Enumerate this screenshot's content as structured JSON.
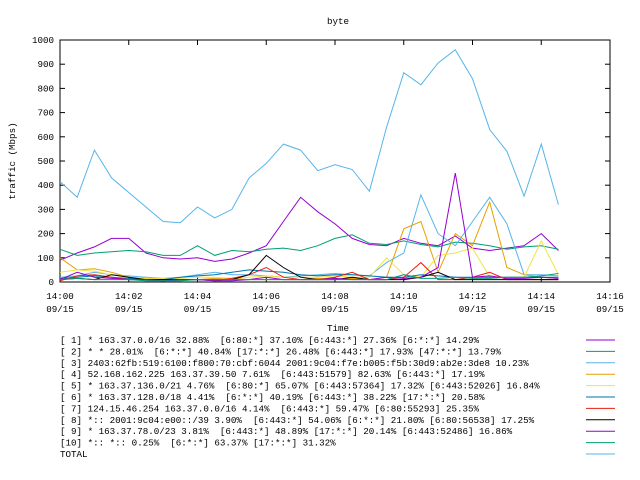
{
  "chart_data": {
    "type": "line",
    "title": "byte",
    "xlabel": "Time",
    "ylabel": "traffic (Mbps)",
    "x": [
      0,
      0.5,
      1,
      1.5,
      2,
      2.5,
      3,
      3.5,
      4,
      4.5,
      5,
      5.5,
      6,
      6.5,
      7,
      7.5,
      8,
      8.5,
      9,
      9.5,
      10,
      10.5,
      11,
      11.5,
      12,
      12.5,
      13,
      13.5,
      14,
      14.5
    ],
    "xlim": [
      0,
      16
    ],
    "xticks": [
      {
        "value": 0,
        "label": "14:00",
        "date": "09/15"
      },
      {
        "value": 2,
        "label": "14:02",
        "date": "09/15"
      },
      {
        "value": 4,
        "label": "14:04",
        "date": "09/15"
      },
      {
        "value": 6,
        "label": "14:06",
        "date": "09/15"
      },
      {
        "value": 8,
        "label": "14:08",
        "date": "09/15"
      },
      {
        "value": 10,
        "label": "14:10",
        "date": "09/15"
      },
      {
        "value": 12,
        "label": "14:12",
        "date": "09/15"
      },
      {
        "value": 14,
        "label": "14:14",
        "date": "09/15"
      },
      {
        "value": 16,
        "label": "14:16",
        "date": "09/15"
      }
    ],
    "ylim": [
      0,
      1000
    ],
    "yticks": [
      0,
      100,
      200,
      300,
      400,
      500,
      600,
      700,
      800,
      900,
      1000
    ],
    "series": [
      {
        "name": "[ 1] * 163.37.0.0/16 32.88%  [6:80:*] 37.10% [6:443:*] 27.36% [6:*:*] 14.29%",
        "color": "#9400d3",
        "values": [
          90,
          120,
          145,
          180,
          180,
          120,
          100,
          95,
          100,
          85,
          95,
          120,
          150,
          250,
          350,
          290,
          240,
          180,
          155,
          150,
          180,
          160,
          150,
          190,
          140,
          130,
          140,
          150,
          200,
          130
        ]
      },
      {
        "name": "[ 2] * * 28.01%  [6:*:*] 40.84% [17:*:*] 26.48% [6:443:*] 17.93% [47:*:*] 13.79%",
        "color": "#009e73",
        "values": [
          135,
          110,
          120,
          125,
          130,
          125,
          110,
          110,
          150,
          110,
          130,
          125,
          135,
          140,
          130,
          150,
          180,
          195,
          160,
          155,
          170,
          155,
          145,
          165,
          160,
          150,
          135,
          145,
          150,
          135
        ]
      },
      {
        "name": "[ 3] 2403:62fb:519:6100:f800:70:cbf:6044 2001:9c04:f7e:b005:f5b:30d9:ab2e:3de8 10.23%",
        "color": "#56b4e9",
        "values": [
          20,
          25,
          40,
          30,
          25,
          20,
          15,
          20,
          30,
          40,
          30,
          30,
          25,
          20,
          25,
          30,
          35,
          30,
          25,
          80,
          120,
          360,
          200,
          150,
          250,
          350,
          240,
          30,
          30,
          25
        ]
      },
      {
        "name": "[ 4] 52.168.162.225 163.37.39.50 7.61%  [6:443:51579] 82.63% [6:443:*] 17.19%",
        "color": "#e69f00",
        "values": [
          100,
          50,
          55,
          40,
          20,
          15,
          10,
          10,
          10,
          15,
          15,
          10,
          10,
          10,
          10,
          15,
          10,
          15,
          10,
          20,
          220,
          250,
          40,
          200,
          150,
          330,
          60,
          30,
          20,
          15
        ]
      },
      {
        "name": "[ 5] * 163.37.136.0/21 4.76%  [6:80:*] 65.07% [6:443:57364] 17.32% [6:443:52026] 16.84%",
        "color": "#f0e442",
        "values": [
          40,
          50,
          45,
          30,
          20,
          15,
          15,
          15,
          20,
          20,
          15,
          20,
          25,
          20,
          20,
          20,
          25,
          20,
          20,
          100,
          30,
          20,
          110,
          120,
          140,
          20,
          20,
          20,
          170,
          30
        ]
      },
      {
        "name": "[ 6] * 163.37.128.0/18 4.41%  [6:*:*] 40.19% [6:443:*] 38.22% [17:*:*] 20.58%",
        "color": "#0072b2",
        "values": [
          15,
          20,
          25,
          20,
          15,
          10,
          10,
          20,
          25,
          30,
          40,
          50,
          45,
          40,
          30,
          25,
          30,
          30,
          25,
          20,
          20,
          30,
          25,
          20,
          20,
          20,
          20,
          20,
          20,
          20
        ]
      },
      {
        "name": "[ 7] 124.15.46.254 163.37.0.0/16 4.14%  [6:443:*] 59.47% [6:80:55293] 25.35%",
        "color": "#e51e10",
        "values": [
          5,
          25,
          30,
          20,
          10,
          10,
          10,
          10,
          10,
          5,
          15,
          30,
          60,
          20,
          10,
          10,
          20,
          40,
          10,
          10,
          20,
          80,
          10,
          10,
          20,
          40,
          10,
          10,
          10,
          10
        ]
      },
      {
        "name": "[ 8] *:: 2001:9c04:e00::/39 3.90%  [6:443:*] 54.06% [6:*:*] 21.80% [6:80:56538] 17.25%",
        "color": "#000000",
        "values": [
          10,
          15,
          10,
          30,
          20,
          10,
          10,
          10,
          10,
          10,
          10,
          30,
          110,
          60,
          20,
          10,
          10,
          20,
          10,
          10,
          10,
          20,
          40,
          10,
          10,
          10,
          10,
          10,
          10,
          10
        ]
      },
      {
        "name": "[ 9] * 163.37.78.0/23 3.81%  [6:443:*] 48.89% [17:*:*] 20.14% [6:443:52486] 16.86%",
        "color": "#9400d3",
        "values": [
          10,
          40,
          20,
          15,
          10,
          10,
          5,
          10,
          10,
          5,
          5,
          10,
          20,
          10,
          10,
          10,
          15,
          10,
          10,
          20,
          15,
          20,
          60,
          450,
          20,
          25,
          15,
          15,
          20,
          15
        ]
      },
      {
        "name": "[10] *:: *:: 0.25%  [6:*:*] 63.37% [17:*:*] 31.32%",
        "color": "#009e73",
        "values": [
          10,
          15,
          10,
          10,
          10,
          5,
          5,
          5,
          10,
          10,
          10,
          10,
          10,
          10,
          10,
          10,
          10,
          10,
          10,
          10,
          30,
          15,
          15,
          20,
          15,
          15,
          20,
          20,
          25,
          35
        ]
      },
      {
        "name": "TOTAL",
        "color": "#56b4e9",
        "values": [
          415,
          350,
          545,
          430,
          370,
          310,
          250,
          245,
          310,
          265,
          300,
          430,
          490,
          570,
          545,
          460,
          485,
          465,
          375,
          640,
          865,
          815,
          905,
          960,
          840,
          630,
          540,
          355,
          570,
          320
        ]
      }
    ]
  }
}
